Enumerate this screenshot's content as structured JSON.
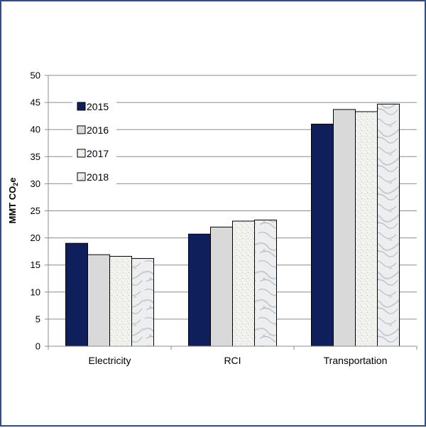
{
  "chart_data": {
    "type": "bar",
    "categories": [
      "Electricity",
      "RCI",
      "Transportation"
    ],
    "series": [
      {
        "name": "2015",
        "values": [
          19.0,
          20.7,
          41.0
        ],
        "color": "#0f1f5c",
        "pattern": "solid"
      },
      {
        "name": "2016",
        "values": [
          16.9,
          22.0,
          43.7
        ],
        "color": "#d9d9d9",
        "pattern": "light-gray"
      },
      {
        "name": "2017",
        "values": [
          16.6,
          23.1,
          43.3
        ],
        "color": "#f2f2ee",
        "pattern": "speckled"
      },
      {
        "name": "2018",
        "values": [
          16.2,
          23.3,
          44.7
        ],
        "color": "#e2e4e6",
        "pattern": "marble"
      }
    ],
    "ylabel_main": "MMT CO",
    "ylabel_sub": "2",
    "ylabel_tail": "e",
    "ylim": [
      0,
      50
    ],
    "yticks": [
      0,
      5,
      10,
      15,
      20,
      25,
      30,
      35,
      40,
      45,
      50
    ],
    "grid": true,
    "legend_position": "top-left inside"
  }
}
